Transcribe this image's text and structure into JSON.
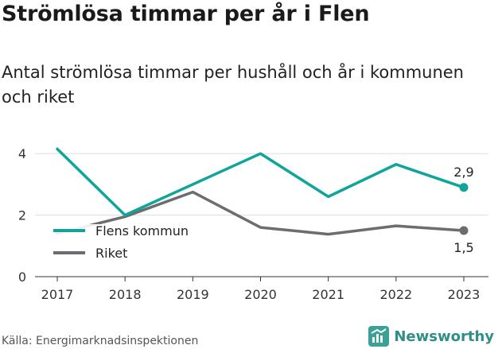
{
  "title": "Strömlösa timmar per år i Flen",
  "subtitle": "Antal strömlösa timmar per hushåll och år i kommunen och riket",
  "source": "Källa: Energimarknadsinspektionen",
  "brand": "Newsworthy",
  "colors": {
    "flen": "#0fa59a",
    "riket": "#6d6c71",
    "grid": "#dddddd",
    "brand": "#2f8f86"
  },
  "chart_data": {
    "type": "line",
    "x": [
      "2017",
      "2018",
      "2019",
      "2020",
      "2021",
      "2022",
      "2023"
    ],
    "ylim": [
      0,
      4.6
    ],
    "yticks": [
      "0",
      "2",
      "4"
    ],
    "grid": true,
    "legend": "left",
    "series": [
      {
        "name": "Flens kommun",
        "values": [
          4.15,
          2.0,
          3.0,
          4.0,
          2.6,
          3.65,
          2.9
        ],
        "end_label": "2,9"
      },
      {
        "name": "Riket",
        "values": [
          1.4,
          1.95,
          2.75,
          1.6,
          1.38,
          1.65,
          1.5
        ],
        "end_label": "1,5"
      }
    ]
  }
}
